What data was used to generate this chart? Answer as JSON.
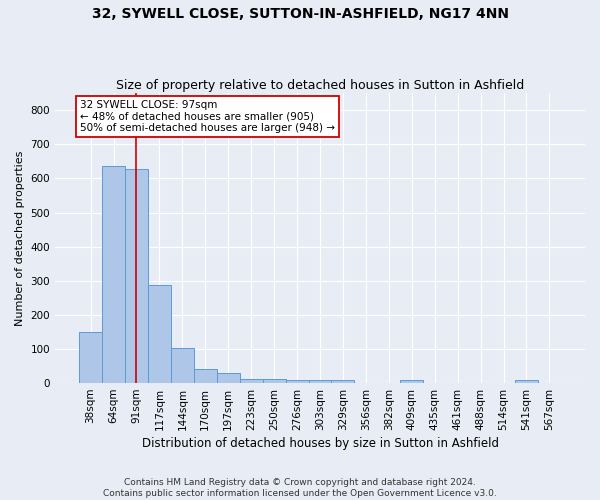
{
  "title": "32, SYWELL CLOSE, SUTTON-IN-ASHFIELD, NG17 4NN",
  "subtitle": "Size of property relative to detached houses in Sutton in Ashfield",
  "xlabel": "Distribution of detached houses by size in Sutton in Ashfield",
  "ylabel": "Number of detached properties",
  "footer": "Contains HM Land Registry data © Crown copyright and database right 2024.\nContains public sector information licensed under the Open Government Licence v3.0.",
  "categories": [
    "38sqm",
    "64sqm",
    "91sqm",
    "117sqm",
    "144sqm",
    "170sqm",
    "197sqm",
    "223sqm",
    "250sqm",
    "276sqm",
    "303sqm",
    "329sqm",
    "356sqm",
    "382sqm",
    "409sqm",
    "435sqm",
    "461sqm",
    "488sqm",
    "514sqm",
    "541sqm",
    "567sqm"
  ],
  "values": [
    150,
    635,
    628,
    288,
    103,
    42,
    29,
    12,
    12,
    10,
    10,
    10,
    0,
    0,
    8,
    0,
    0,
    0,
    0,
    8,
    0
  ],
  "bar_color": "#aec6e8",
  "bar_edge_color": "#5b9bd5",
  "vline_x_index": 2,
  "vline_color": "#cc0000",
  "annotation_line1": "32 SYWELL CLOSE: 97sqm",
  "annotation_line2": "← 48% of detached houses are smaller (905)",
  "annotation_line3": "50% of semi-detached houses are larger (948) →",
  "annotation_box_color": "#ffffff",
  "annotation_box_edge_color": "#cc0000",
  "ylim": [
    0,
    850
  ],
  "yticks": [
    0,
    100,
    200,
    300,
    400,
    500,
    600,
    700,
    800
  ],
  "background_color": "#e8edf5",
  "grid_color": "#ffffff",
  "title_fontsize": 10,
  "subtitle_fontsize": 9,
  "xlabel_fontsize": 8.5,
  "ylabel_fontsize": 8,
  "tick_fontsize": 7.5,
  "annotation_fontsize": 7.5,
  "footer_fontsize": 6.5
}
